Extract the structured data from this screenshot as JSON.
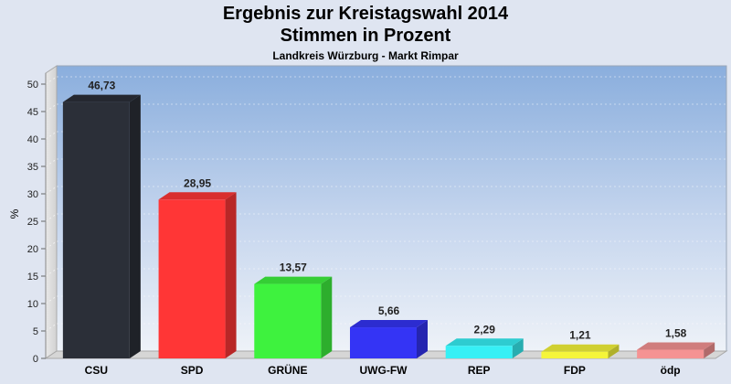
{
  "chart_data": {
    "type": "bar",
    "title": "Ergebnis zur Kreistagswahl 2014",
    "title2": "Stimmen in Prozent",
    "subtitle": "Landkreis Würzburg - Markt Rimpar",
    "ylabel": "%",
    "ylim": [
      0,
      52
    ],
    "yticks": [
      0,
      5,
      10,
      15,
      20,
      25,
      30,
      35,
      40,
      45,
      50
    ],
    "grid": true,
    "categories": [
      "CSU",
      "SPD",
      "GRÜNE",
      "UWG-FW",
      "REP",
      "FDP",
      "ödp"
    ],
    "values": [
      46.73,
      28.95,
      13.57,
      5.66,
      2.29,
      1.21,
      1.58
    ],
    "value_labels": [
      "46,73",
      "28,95",
      "13,57",
      "5,66",
      "2,29",
      "1,21",
      "1,58"
    ],
    "colors": [
      "#2b2f38",
      "#ff3636",
      "#3ef23e",
      "#3434f5",
      "#36f0f5",
      "#f5f53a",
      "#f59393"
    ]
  }
}
